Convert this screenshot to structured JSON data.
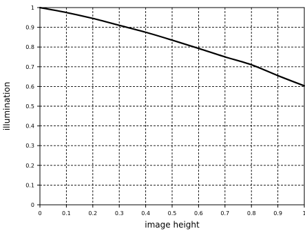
{
  "chart_data": {
    "type": "line",
    "title": "",
    "xlabel": "image height",
    "ylabel": "illumination",
    "xlim": [
      0,
      1
    ],
    "ylim": [
      0,
      1
    ],
    "grid": true,
    "x_ticks": [
      "0",
      "0.1",
      "0.2",
      "0.3",
      "0.4",
      "0.5",
      "0.6",
      "0.7",
      "0.8",
      "0.9",
      "1"
    ],
    "y_ticks": [
      "0",
      "0.1",
      "0.2",
      "0.3",
      "0.4",
      "0.5",
      "0.6",
      "0.7",
      "0.8",
      "0.9",
      "1"
    ],
    "series": [
      {
        "x": [
          0,
          0.1,
          0.2,
          0.3,
          0.4,
          0.5,
          0.6,
          0.7,
          0.8,
          0.9,
          1.0
        ],
        "y": [
          1.0,
          0.975,
          0.945,
          0.91,
          0.875,
          0.835,
          0.793,
          0.75,
          0.71,
          0.655,
          0.603
        ]
      }
    ]
  }
}
